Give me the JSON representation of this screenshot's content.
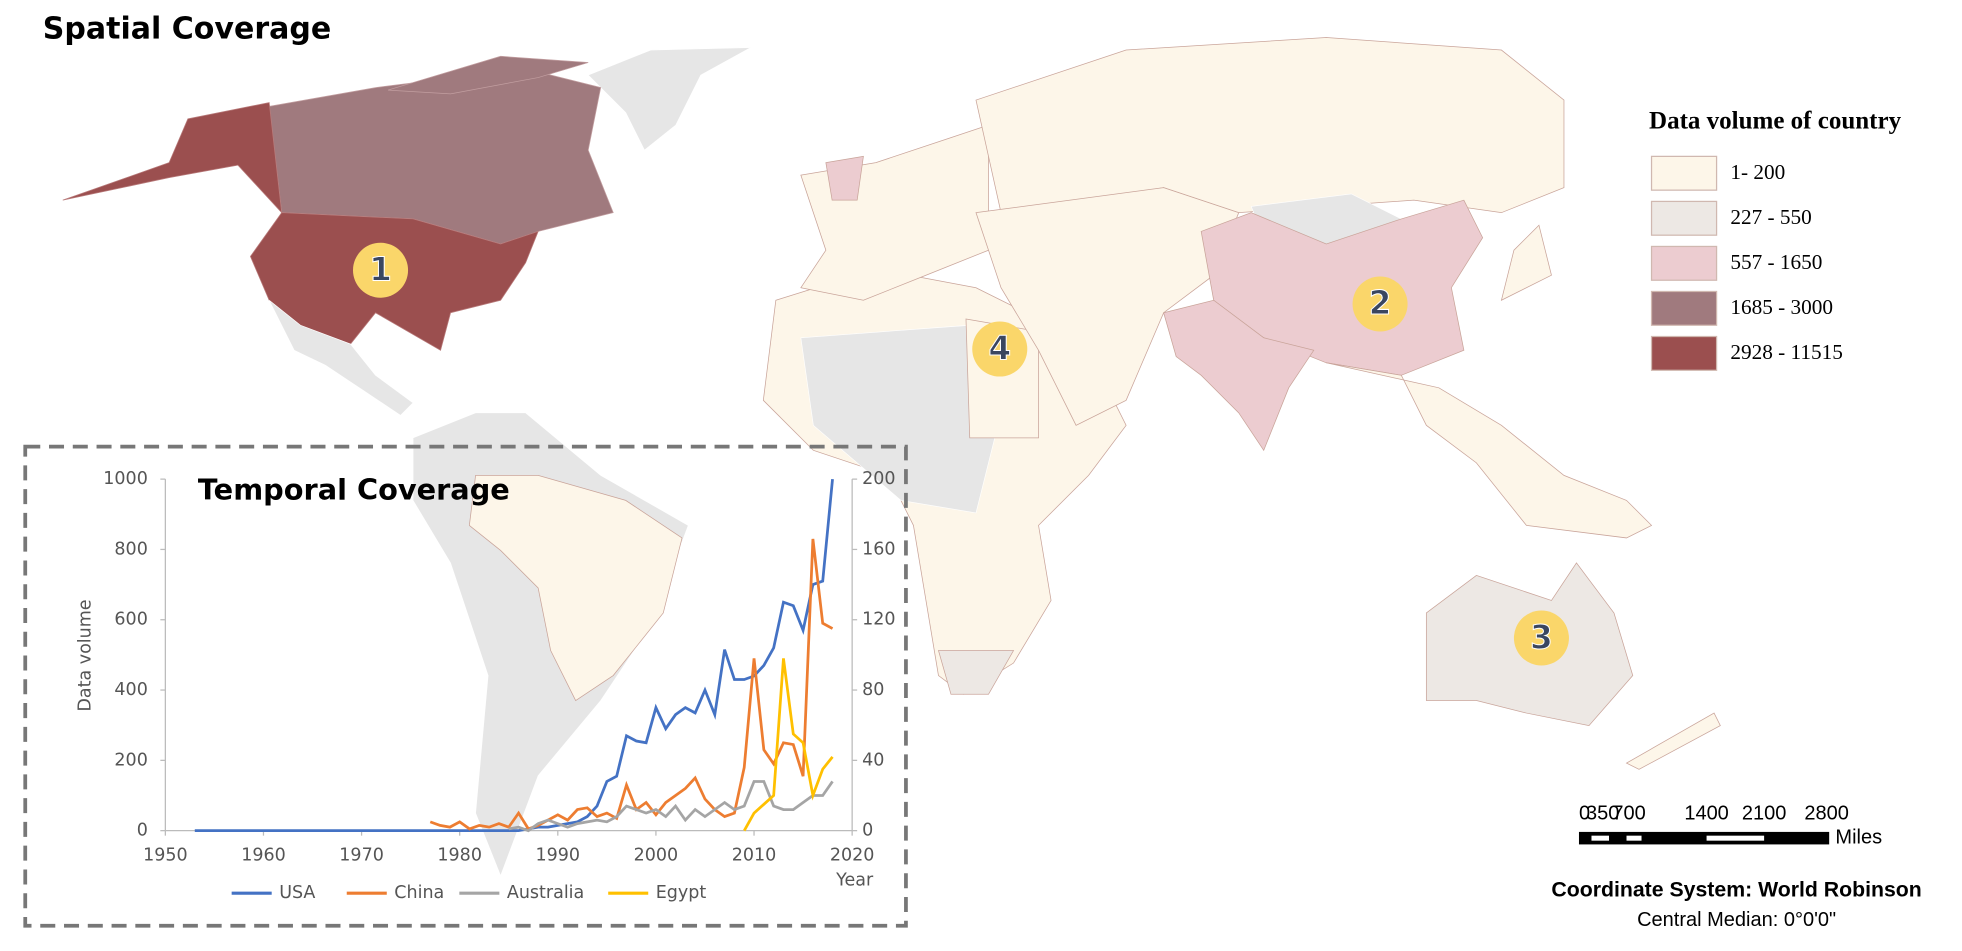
{
  "title": "Spatial Coverage",
  "legend": {
    "title": "Data volume of country",
    "items": [
      {
        "label": "1- 200",
        "color": "#fdf6e9"
      },
      {
        "label": "227 - 550",
        "color": "#ede8e4"
      },
      {
        "label": "557 - 1650",
        "color": "#ecccd0"
      },
      {
        "label": "1685 - 3000",
        "color": "#a07a7e"
      },
      {
        "label": "2928 - 11515",
        "color": "#9b4f4f"
      }
    ]
  },
  "markers": [
    "1",
    "2",
    "3",
    "4"
  ],
  "scale_bar": {
    "labels": [
      "0",
      "350",
      "700",
      "1400",
      "2100",
      "2800"
    ],
    "unit": "Miles"
  },
  "coordinate_system": {
    "name": "Coordinate System: World Robinson",
    "median": "Central Median: 0°0'0\""
  },
  "chart_data": {
    "type": "line",
    "title": "Temporal Coverage",
    "y_label": "Data volume",
    "x_label": "Year",
    "x": [
      1953,
      1954,
      1955,
      1956,
      1957,
      1958,
      1959,
      1960,
      1961,
      1962,
      1963,
      1964,
      1965,
      1966,
      1967,
      1968,
      1969,
      1970,
      1971,
      1972,
      1973,
      1974,
      1975,
      1976,
      1977,
      1978,
      1979,
      1980,
      1981,
      1982,
      1983,
      1984,
      1985,
      1986,
      1987,
      1988,
      1989,
      1990,
      1991,
      1992,
      1993,
      1994,
      1995,
      1996,
      1997,
      1998,
      1999,
      2000,
      2001,
      2002,
      2003,
      2004,
      2005,
      2006,
      2007,
      2008,
      2009,
      2010,
      2011,
      2012,
      2013,
      2014,
      2015,
      2016,
      2017,
      2018
    ],
    "xlim": [
      1950,
      2020
    ],
    "xticks": [
      1950,
      1960,
      1970,
      1980,
      1990,
      2000,
      2010,
      2020
    ],
    "ylim": [
      0,
      1000
    ],
    "yticks": [
      0,
      200,
      400,
      600,
      800,
      1000
    ],
    "y2lim": [
      0,
      200
    ],
    "y2ticks": [
      0,
      40,
      80,
      120,
      160,
      200
    ],
    "series": [
      {
        "name": "USA",
        "color": "#4472c4",
        "values": [
          0,
          0,
          0,
          0,
          0,
          0,
          0,
          0,
          0,
          0,
          0,
          0,
          0,
          0,
          0,
          0,
          0,
          0,
          0,
          0,
          0,
          0,
          0,
          0,
          0,
          0,
          0,
          0,
          0,
          0,
          0,
          0,
          0,
          0,
          5,
          10,
          10,
          15,
          20,
          25,
          40,
          70,
          140,
          155,
          270,
          255,
          250,
          350,
          290,
          330,
          350,
          335,
          400,
          330,
          515,
          430,
          430,
          440,
          470,
          520,
          650,
          640,
          570,
          700,
          710,
          1000
        ]
      },
      {
        "name": "China",
        "color": "#ed7d31",
        "values": [
          null,
          null,
          null,
          null,
          null,
          null,
          null,
          null,
          null,
          null,
          null,
          null,
          null,
          null,
          null,
          null,
          null,
          null,
          null,
          null,
          null,
          null,
          null,
          null,
          25,
          15,
          10,
          25,
          5,
          15,
          10,
          20,
          10,
          50,
          5,
          15,
          30,
          45,
          30,
          60,
          65,
          40,
          50,
          35,
          130,
          60,
          80,
          45,
          80,
          100,
          120,
          150,
          90,
          60,
          40,
          50,
          180,
          490,
          230,
          190,
          250,
          245,
          155,
          830,
          590,
          575
        ]
      },
      {
        "name": "Australia",
        "color": "#a5a5a5",
        "axis": "y2",
        "values": [
          null,
          null,
          null,
          null,
          null,
          null,
          null,
          null,
          null,
          null,
          null,
          null,
          null,
          null,
          null,
          null,
          null,
          null,
          null,
          null,
          null,
          null,
          null,
          null,
          null,
          null,
          null,
          null,
          null,
          null,
          null,
          null,
          1,
          2,
          0,
          4,
          6,
          4,
          2,
          4,
          5,
          6,
          5,
          8,
          14,
          12,
          10,
          12,
          8,
          14,
          6,
          12,
          8,
          12,
          16,
          12,
          14,
          28,
          28,
          14,
          12,
          12,
          16,
          20,
          20,
          28
        ]
      },
      {
        "name": "Egypt",
        "color": "#ffc000",
        "axis": "y2",
        "values": [
          null,
          null,
          null,
          null,
          null,
          null,
          null,
          null,
          null,
          null,
          null,
          null,
          null,
          null,
          null,
          null,
          null,
          null,
          null,
          null,
          null,
          null,
          null,
          null,
          null,
          null,
          null,
          null,
          null,
          null,
          null,
          null,
          null,
          null,
          null,
          null,
          null,
          null,
          null,
          null,
          null,
          null,
          null,
          null,
          null,
          null,
          null,
          null,
          null,
          null,
          null,
          null,
          null,
          null,
          null,
          null,
          0,
          10,
          15,
          20,
          98,
          55,
          50,
          20,
          35,
          42
        ]
      }
    ]
  }
}
